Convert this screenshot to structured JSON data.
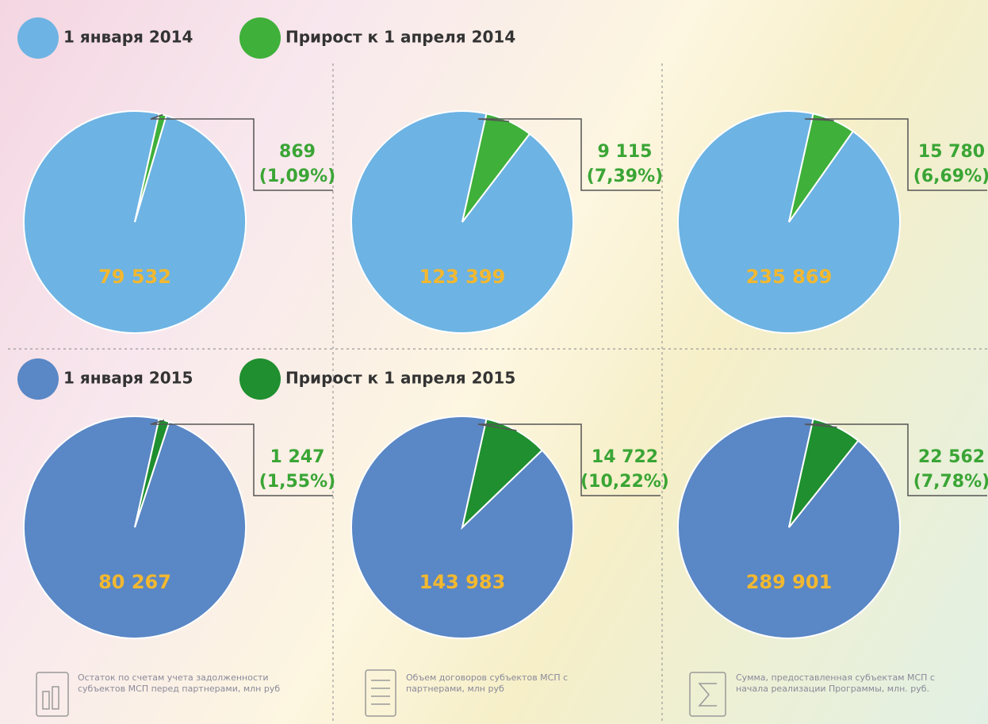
{
  "legends": [
    {
      "series": [
        {
          "name": "1 января 2014",
          "color": "#6db3e3"
        },
        {
          "name": "Прирост к 1 апреля 2014",
          "color": "#3fb03a"
        }
      ]
    },
    {
      "series": [
        {
          "name": "1 января 2015",
          "color": "#5a87c5"
        },
        {
          "name": "Прирост к 1 апреля 2015",
          "color": "#1f8f2f"
        }
      ]
    }
  ],
  "chart_data": [
    {
      "type": "pie",
      "values": [
        79532,
        869
      ],
      "value_labels": [
        "79 532",
        "869"
      ],
      "share_label": "(1,09%)",
      "colors": [
        "#6db3e3",
        "#3fb03a"
      ]
    },
    {
      "type": "pie",
      "values": [
        123399,
        9115
      ],
      "value_labels": [
        "123 399",
        "9 115"
      ],
      "share_label": "(7,39%)",
      "colors": [
        "#6db3e3",
        "#3fb03a"
      ]
    },
    {
      "type": "pie",
      "values": [
        235869,
        15780
      ],
      "value_labels": [
        "235 869",
        "15 780"
      ],
      "share_label": "(6,69%)",
      "colors": [
        "#6db3e3",
        "#3fb03a"
      ]
    },
    {
      "type": "pie",
      "values": [
        80267,
        1247
      ],
      "value_labels": [
        "80 267",
        "1 247"
      ],
      "share_label": "(1,55%)",
      "colors": [
        "#5a87c5",
        "#1f8f2f"
      ]
    },
    {
      "type": "pie",
      "values": [
        143983,
        14722
      ],
      "value_labels": [
        "143 983",
        "14 722"
      ],
      "share_label": "(10,22%)",
      "colors": [
        "#5a87c5",
        "#1f8f2f"
      ]
    },
    {
      "type": "pie",
      "values": [
        289901,
        22562
      ],
      "value_labels": [
        "289 901",
        "22 562"
      ],
      "share_label": "(7,78%)",
      "colors": [
        "#5a87c5",
        "#1f8f2f"
      ]
    }
  ],
  "captions": [
    "Остаток по счетам учета задолженности субъектов МСП перед партнерами, млн руб",
    "Объем договоров субъектов МСП с партнерами, млн руб",
    "Сумма, предоставленная субъектам МСП с начала реализации Программы, млн. руб."
  ]
}
